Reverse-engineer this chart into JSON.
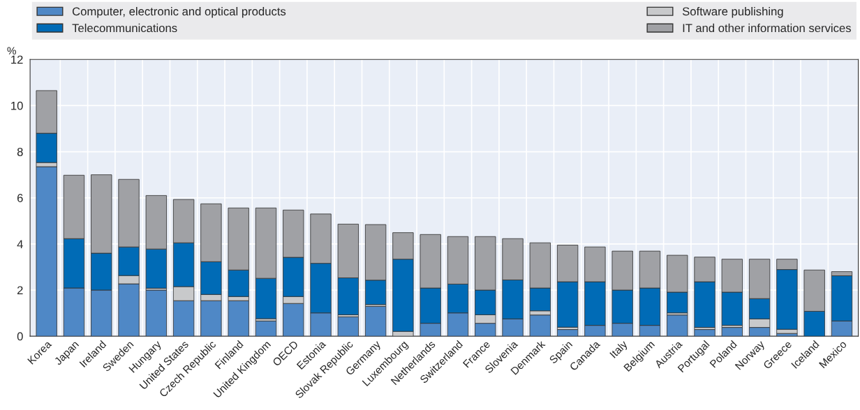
{
  "chart_data": {
    "type": "bar",
    "stacked": true,
    "ylabel": "%",
    "categories": [
      "Korea",
      "Japan",
      "Ireland",
      "Sweden",
      "Hungary",
      "United States",
      "Czech Republic",
      "Finland",
      "United Kingdom",
      "OECD",
      "Estonia",
      "Slovak Republic",
      "Germany",
      "Luxembourg",
      "Netherlands",
      "Switzerland",
      "France",
      "Slovenia",
      "Denmark",
      "Spain",
      "Canada",
      "Italy",
      "Belgium",
      "Austria",
      "Portugal",
      "Poland",
      "Norway",
      "Greece",
      "Iceland",
      "Mexico"
    ],
    "series": [
      {
        "name": "Computer, electronic and optical products",
        "color": "#4f88c6",
        "values": [
          7.35,
          2.09,
          2.0,
          2.27,
          2.0,
          1.54,
          1.54,
          1.54,
          0.66,
          1.42,
          1.01,
          0.84,
          1.29,
          0,
          0.56,
          1.01,
          0.56,
          0.75,
          0.92,
          0.29,
          0.47,
          0.56,
          0.47,
          0.92,
          0.29,
          0.38,
          0.38,
          0.12,
          null,
          0.66
        ]
      },
      {
        "name": "Software publishing",
        "color": "#c8c9cb",
        "values": [
          0.18,
          0,
          0,
          0.36,
          0.08,
          0.61,
          0.27,
          0.18,
          0.1,
          0.3,
          0,
          0.09,
          0.08,
          0.21,
          0,
          0,
          0.37,
          0,
          0.18,
          0.1,
          0,
          0,
          0,
          0.09,
          0.09,
          0.09,
          0.37,
          0.18,
          0,
          0
        ]
      },
      {
        "name": "Telecommunications",
        "color": "#006bb6",
        "values": [
          1.27,
          2.14,
          1.6,
          1.24,
          1.7,
          1.9,
          1.42,
          1.15,
          1.75,
          1.7,
          2.15,
          1.6,
          1.06,
          3.13,
          1.53,
          1.25,
          1.07,
          1.69,
          0.99,
          1.97,
          1.89,
          1.44,
          1.62,
          0.9,
          1.98,
          1.44,
          0.88,
          2.59,
          1.08,
          1.96
        ]
      },
      {
        "name": "IT and other information services",
        "color": "#a0a1a5",
        "values": [
          1.85,
          2.75,
          3.4,
          2.93,
          2.32,
          1.88,
          2.51,
          2.69,
          3.05,
          2.05,
          2.14,
          2.33,
          2.41,
          1.15,
          2.32,
          2.06,
          2.32,
          1.79,
          1.96,
          1.59,
          1.51,
          1.69,
          1.6,
          1.6,
          1.07,
          1.43,
          1.71,
          0.45,
          1.79,
          0.18
        ]
      }
    ],
    "ylim": [
      0,
      12
    ],
    "yticks": [
      0,
      2,
      4,
      6,
      8,
      10,
      12
    ],
    "grid": true,
    "legend": "top"
  }
}
